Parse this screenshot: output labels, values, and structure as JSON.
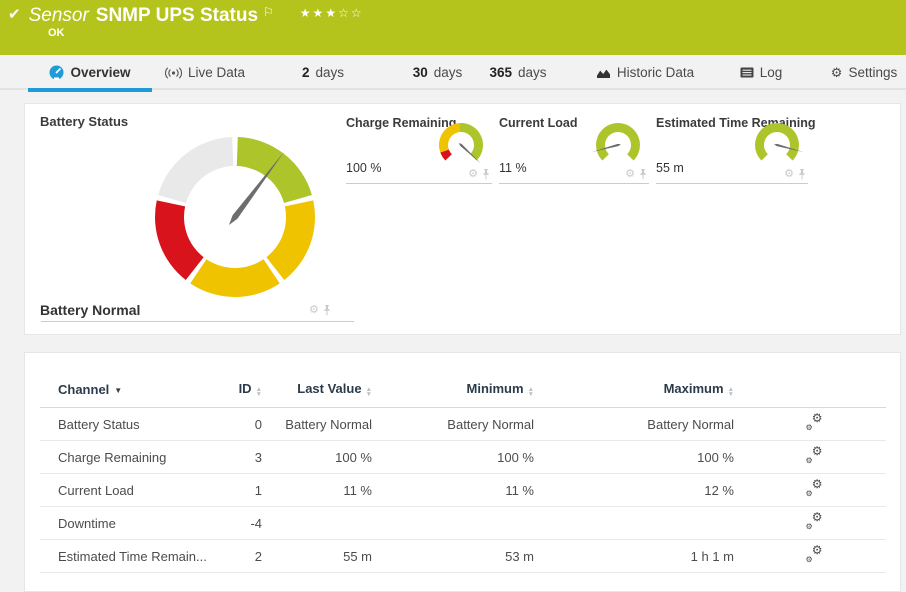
{
  "colors": {
    "header_green": "#b4c41d",
    "accent_blue": "#1f9bd7",
    "lime": "#adc52a",
    "yellow": "#f0c300",
    "red": "#d8131b",
    "gray": "#e9e9e9",
    "needle": "#6d6d6d"
  },
  "header": {
    "check_icon": "✔",
    "title_prefix": "Sensor",
    "title": "SNMP UPS Status",
    "flag_icon": "⚐",
    "stars_filled": "★★★",
    "stars_empty": "☆☆",
    "status": "OK"
  },
  "tabs": {
    "overview": {
      "label": "Overview"
    },
    "live_data": {
      "label": "Live Data"
    },
    "days_2": {
      "num": "2",
      "unit": "days"
    },
    "days_30": {
      "num": "30",
      "unit": "days"
    },
    "days_365": {
      "num": "365",
      "unit": "days"
    },
    "historic": {
      "label": "Historic Data"
    },
    "log": {
      "label": "Log"
    },
    "settings": {
      "label": "Settings",
      "gear_icon": "⚙"
    }
  },
  "gauges": {
    "main": {
      "title": "Battery Status",
      "status_text": "Battery Normal",
      "needle_deg": 37,
      "segments": [
        {
          "color": "lime",
          "from": 2,
          "to": 74
        },
        {
          "color": "yellow",
          "from": 78,
          "to": 142
        },
        {
          "color": "yellow",
          "from": 146,
          "to": 214
        },
        {
          "color": "red",
          "from": 218,
          "to": 282
        },
        {
          "color": "gray",
          "from": 286,
          "to": 358
        }
      ]
    },
    "minis": [
      {
        "label": "Charge Remaining",
        "value": "100 %",
        "needle_deg": 133,
        "segments": [
          {
            "color": "red",
            "from": -135,
            "to": -110
          },
          {
            "color": "yellow",
            "from": -110,
            "to": -5
          },
          {
            "color": "lime",
            "from": -5,
            "to": 135
          }
        ]
      },
      {
        "label": "Current Load",
        "value": "11 %",
        "needle_deg": -105,
        "segments": [
          {
            "color": "lime",
            "from": -135,
            "to": 135
          }
        ]
      },
      {
        "label": "Estimated Time Remaining",
        "value": "55 m",
        "needle_deg": 105,
        "segments": [
          {
            "color": "lime",
            "from": -135,
            "to": 135
          }
        ]
      }
    ],
    "gear_icon": "⚙"
  },
  "table": {
    "columns": [
      {
        "label": "Channel"
      },
      {
        "label": "ID"
      },
      {
        "label": "Last Value"
      },
      {
        "label": "Minimum"
      },
      {
        "label": "Maximum"
      }
    ],
    "rows": [
      {
        "channel": "Battery Status",
        "id": "0",
        "last": "Battery Normal",
        "min": "Battery Normal",
        "max": "Battery Normal"
      },
      {
        "channel": "Charge Remaining",
        "id": "3",
        "last": "100 %",
        "min": "100 %",
        "max": "100 %"
      },
      {
        "channel": "Current Load",
        "id": "1",
        "last": "11 %",
        "min": "11 %",
        "max": "12 %"
      },
      {
        "channel": "Downtime",
        "id": "-4",
        "last": "",
        "min": "",
        "max": ""
      },
      {
        "channel": "Estimated Time Remain...",
        "id": "2",
        "last": "55 m",
        "min": "53 m",
        "max": "1 h 1 m"
      }
    ]
  }
}
